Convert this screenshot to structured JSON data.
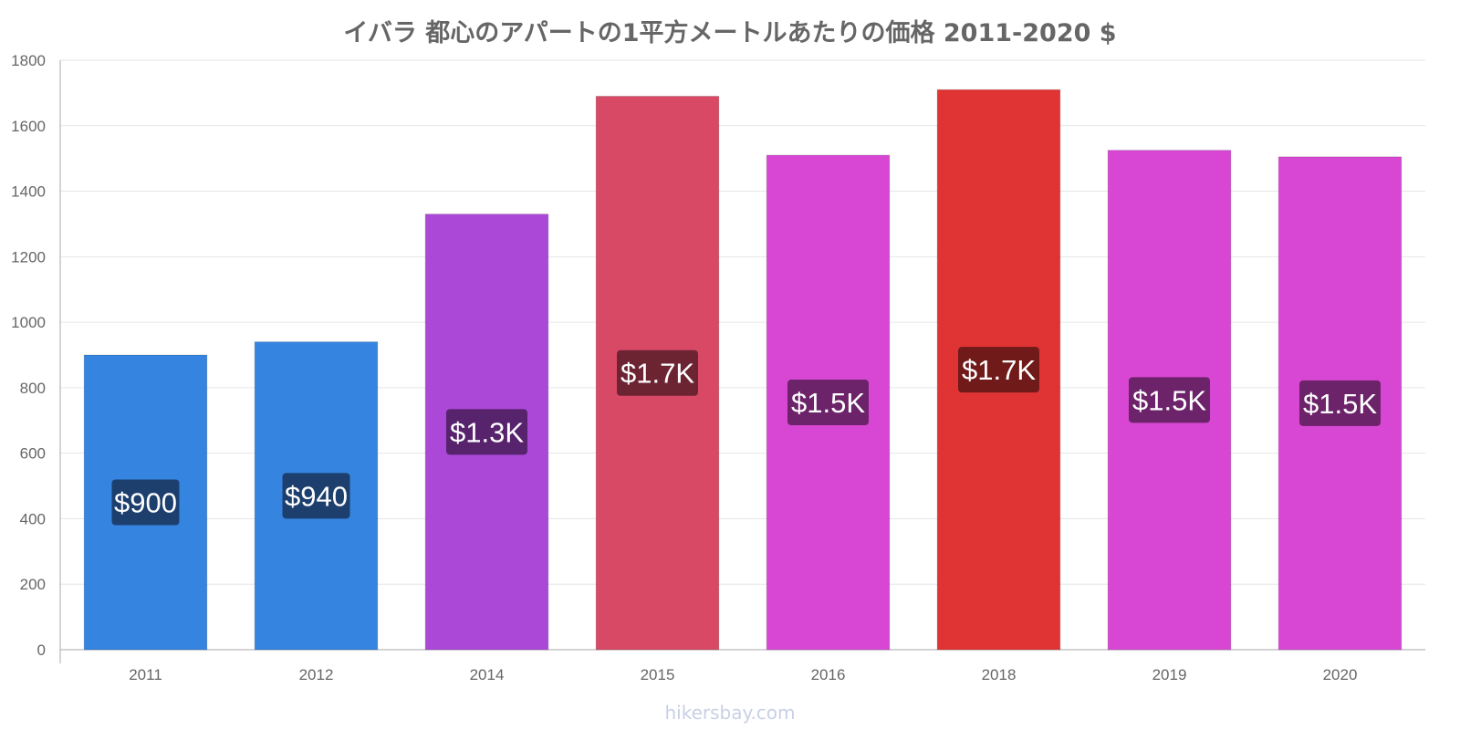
{
  "chart_data": {
    "type": "bar",
    "title": "イバラ 都心のアパートの1平方メートルあたりの価格 2011-2020 $",
    "categories": [
      "2011",
      "2012",
      "2014",
      "2015",
      "2016",
      "2018",
      "2019",
      "2020"
    ],
    "values": [
      900,
      940,
      1330,
      1690,
      1510,
      1710,
      1525,
      1505
    ],
    "data_labels": [
      "$900",
      "$940",
      "$1.3K",
      "$1.7K",
      "$1.5K",
      "$1.7K",
      "$1.5K",
      "$1.5K"
    ],
    "bar_colors": [
      "#3584e0",
      "#3584e0",
      "#ab48d8",
      "#d84966",
      "#d847d4",
      "#e03434",
      "#d847d4",
      "#d847d4"
    ],
    "label_bg_colors": [
      "#1d3f6e",
      "#1d3f6e",
      "#56236c",
      "#6c2433",
      "#6c236a",
      "#701a1a",
      "#6c236a",
      "#6c236a"
    ],
    "ylim": [
      0,
      1800
    ],
    "yticks": [
      0,
      200,
      400,
      600,
      800,
      1000,
      1200,
      1400,
      1600,
      1800
    ],
    "grid": true,
    "xlabel": "",
    "ylabel": ""
  },
  "watermark": "hikersbay.com"
}
